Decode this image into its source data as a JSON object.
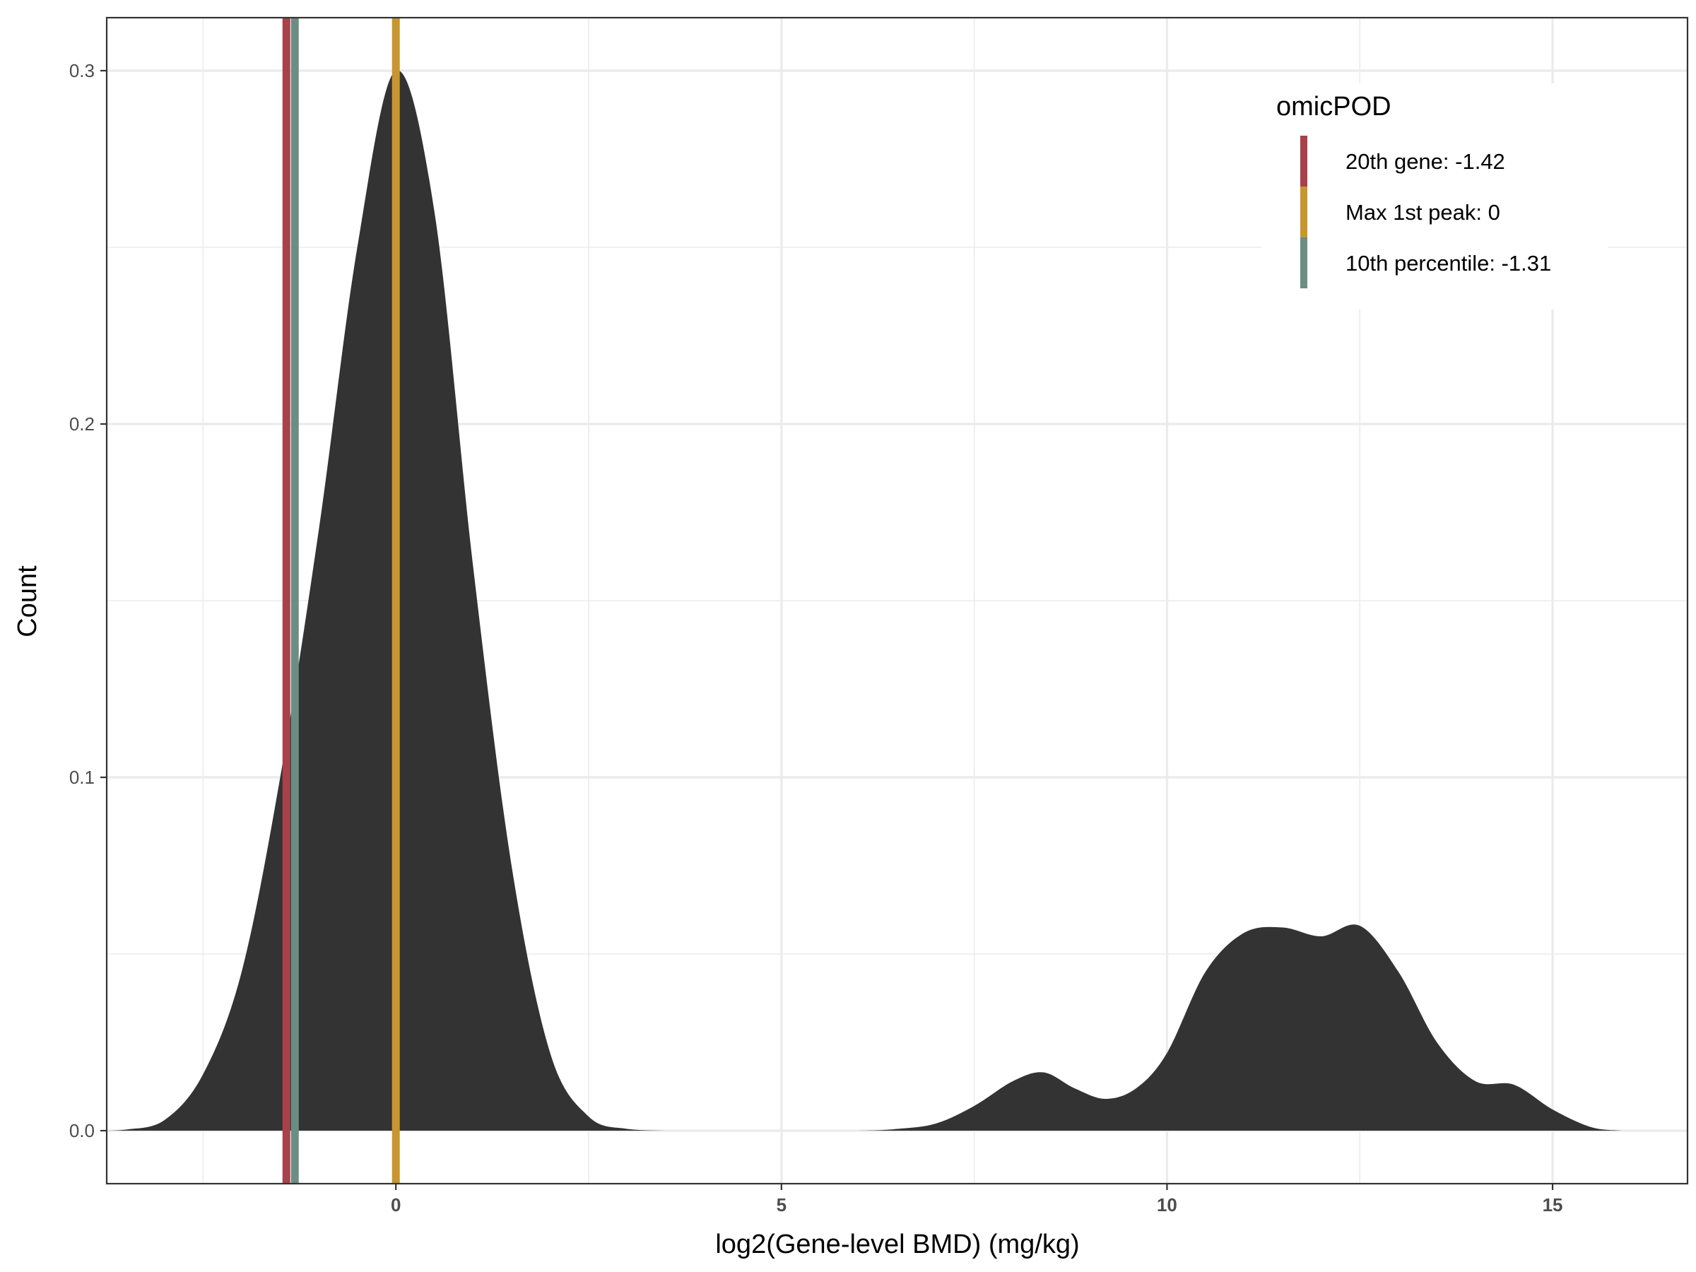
{
  "chart_data": {
    "type": "area",
    "title": "",
    "xlabel": "log2(Gene-level BMD) (mg/kg)",
    "ylabel": "Count",
    "xlim": [
      -3.75,
      16.75
    ],
    "ylim": [
      -0.015,
      0.315
    ],
    "x_ticks": [
      0,
      5,
      10,
      15
    ],
    "x_tick_labels": [
      "0",
      "5",
      "10",
      "15"
    ],
    "y_ticks": [
      0.0,
      0.1,
      0.2,
      0.3
    ],
    "y_tick_labels": [
      "0.0",
      "0.1",
      "0.2",
      "0.3"
    ],
    "grid": true,
    "fill_color": "#333333",
    "density": {
      "x": [
        -3.75,
        -3.5,
        -3.0,
        -2.5,
        -2.0,
        -1.5,
        -1.0,
        -0.5,
        0.0,
        0.5,
        1.0,
        1.5,
        2.0,
        2.5,
        3.0,
        3.5,
        4.0,
        5.0,
        6.0,
        6.5,
        7.0,
        7.5,
        8.0,
        8.4,
        8.8,
        9.2,
        9.6,
        10.0,
        10.5,
        11.0,
        11.5,
        12.0,
        12.5,
        13.0,
        13.5,
        14.0,
        14.5,
        15.0,
        15.5,
        15.9
      ],
      "y": [
        0.0,
        0.0003,
        0.003,
        0.016,
        0.045,
        0.1,
        0.17,
        0.25,
        0.3,
        0.26,
        0.16,
        0.075,
        0.022,
        0.004,
        0.0005,
        0.0,
        0.0,
        0.0,
        0.0,
        0.0005,
        0.002,
        0.007,
        0.014,
        0.0165,
        0.012,
        0.009,
        0.012,
        0.022,
        0.045,
        0.056,
        0.0575,
        0.055,
        0.058,
        0.045,
        0.025,
        0.014,
        0.013,
        0.006,
        0.001,
        0.0
      ]
    },
    "legend": {
      "title": "omicPOD",
      "placement": "top-right",
      "entries": [
        {
          "label": "20th gene: -1.42",
          "value": -1.42,
          "color": "#A8414A"
        },
        {
          "label": "Max 1st peak: 0",
          "value": 0,
          "color": "#C8962E"
        },
        {
          "label": "10th percentile: -1.31",
          "value": -1.31,
          "color": "#6B8E83"
        }
      ]
    }
  }
}
